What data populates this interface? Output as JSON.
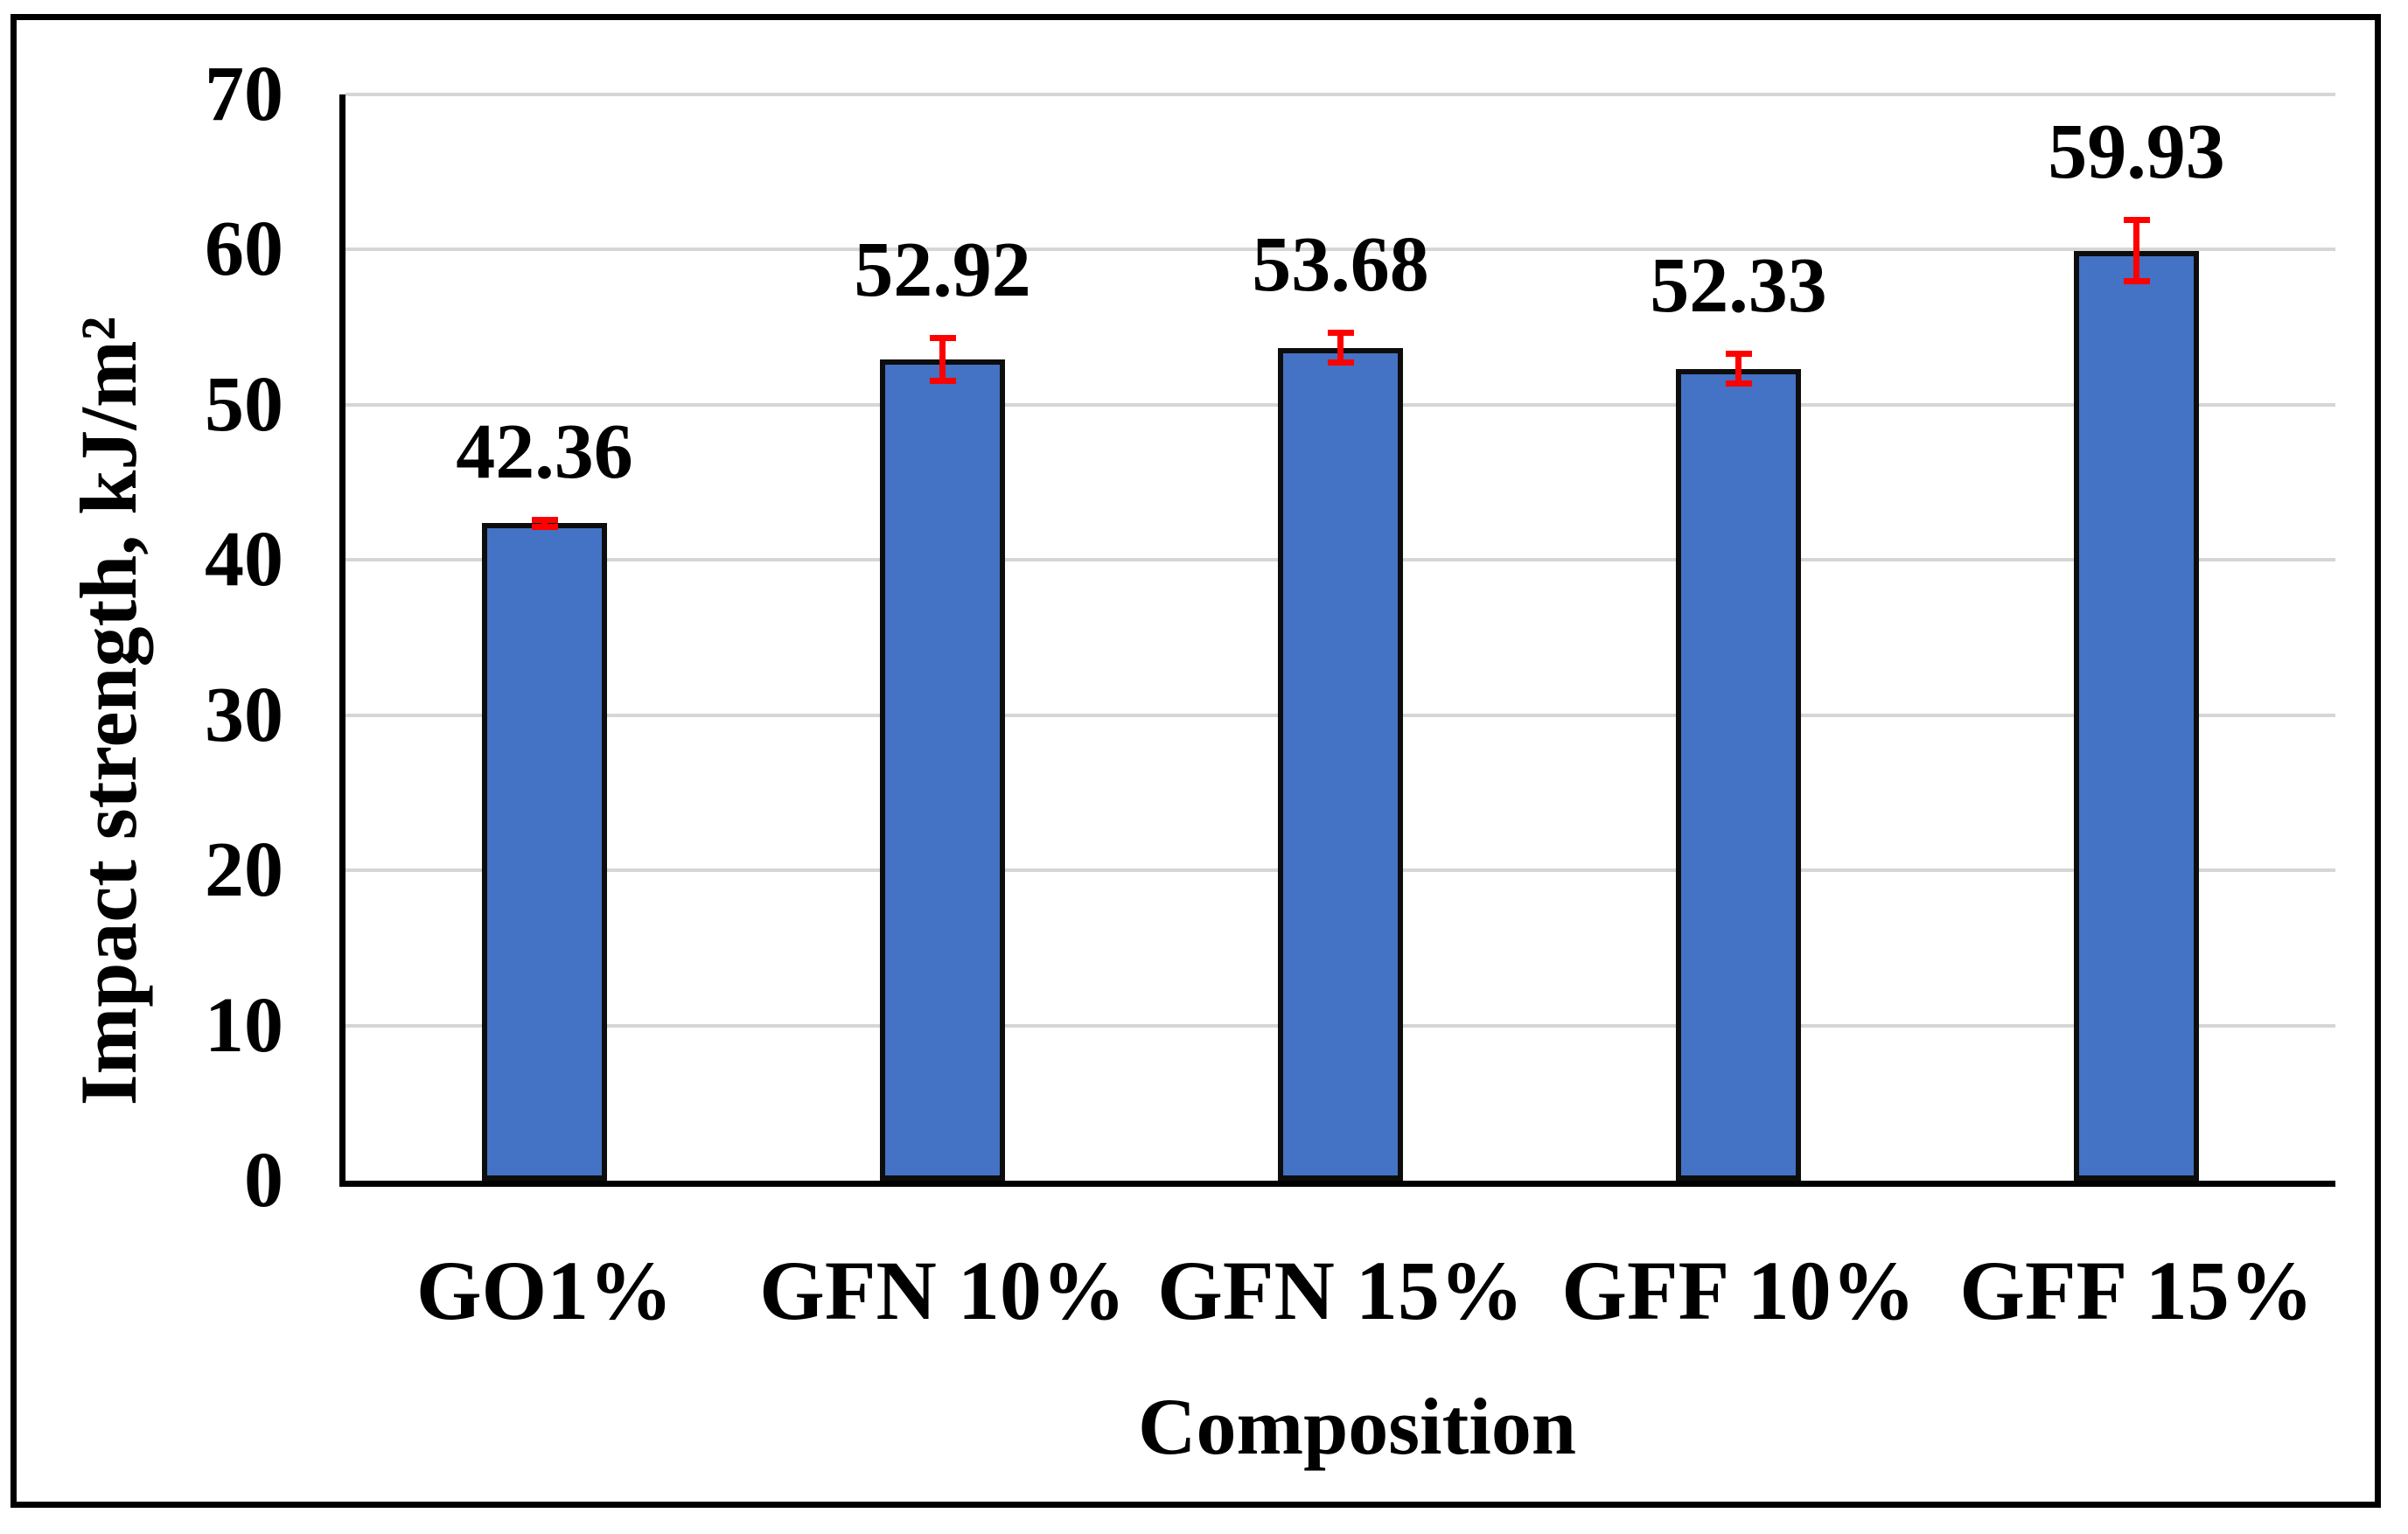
{
  "chart_data": {
    "type": "bar",
    "title": "",
    "categories": [
      "GO1%",
      "GFN 10%",
      "GFN 15%",
      "GFF 10%",
      "GFF 15%"
    ],
    "values": [
      42.36,
      52.92,
      53.68,
      52.33,
      59.93
    ],
    "data_labels": [
      "42.36",
      "52.92",
      "53.68",
      "52.33",
      "59.93"
    ],
    "error_bars_plus_minus": [
      0.25,
      1.4,
      1.0,
      1.0,
      2.0
    ],
    "xlabel": "Composition",
    "ylabel": "Impact strength, kJ/m²",
    "ylim": [
      0,
      70
    ],
    "yticks": [
      0,
      10,
      20,
      30,
      40,
      50,
      60,
      70
    ],
    "grid": "horizontal-on",
    "legend": "none",
    "colors": {
      "bar_fill": "#4472C4",
      "bar_border": "#0d0d0d",
      "error_bar": "#FF0000",
      "gridline": "#D6D6D6",
      "axis_line": "#000000",
      "text": "#000000",
      "background": "#FFFFFF"
    }
  }
}
